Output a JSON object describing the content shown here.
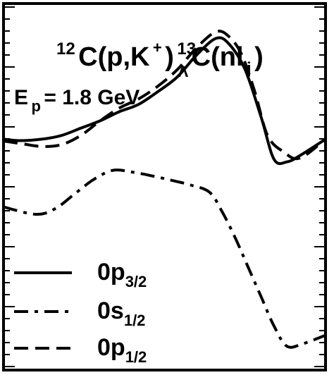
{
  "chart_data": {
    "type": "line",
    "title": {
      "a12": "12",
      "c1": "C(p,K",
      "plus": "+",
      "rp": ")",
      "a13": "13",
      "lambda": "Λ",
      "c2": "C(nl",
      "j": "j",
      "rp2": ")"
    },
    "energy": {
      "e": "E",
      "p": "p",
      "value": " = 1.8 GeV"
    },
    "xlabel": "",
    "ylabel": "",
    "xlim": [
      0,
      100
    ],
    "ylim": [
      0,
      100
    ],
    "grid": false,
    "legend_placement": "bottom-left",
    "series": [
      {
        "name": "0p3/2",
        "legend": {
          "main": "0p",
          "sub": "3/2"
        },
        "dash": "solid",
        "x": [
          0,
          5,
          12,
          18,
          24,
          30,
          36,
          42,
          48,
          54,
          60,
          66,
          70,
          75,
          80,
          84,
          88,
          92,
          100
        ],
        "y": [
          63,
          62.6,
          63,
          64,
          66,
          68,
          70.5,
          72.5,
          76,
          80,
          86,
          90.5,
          89,
          82,
          69,
          57.5,
          56.8,
          58.5,
          63
        ]
      },
      {
        "name": "0s1/2",
        "legend": {
          "main": "0s",
          "sub": "1/2"
        },
        "dash": "dashdot",
        "x": [
          0,
          10,
          16,
          22,
          28,
          34,
          40,
          46,
          52,
          58,
          64,
          68,
          72,
          76,
          80,
          84,
          88,
          93,
          100
        ],
        "y": [
          44.5,
          42.5,
          44,
          48,
          52,
          54.5,
          54,
          53,
          51.8,
          50.5,
          48.5,
          43,
          36,
          28,
          20,
          12,
          6.5,
          7.2,
          9.5
        ]
      },
      {
        "name": "0p1/2",
        "legend": {
          "main": "0p",
          "sub": "1/2"
        },
        "dash": "dashed",
        "x": [
          0,
          6,
          12,
          18,
          24,
          30,
          36,
          42,
          48,
          54,
          60,
          66,
          70,
          74,
          78,
          82,
          87,
          92,
          100
        ],
        "y": [
          62.5,
          61.7,
          61,
          61.5,
          64,
          68,
          71.5,
          74,
          77.5,
          82,
          88,
          92.3,
          91,
          86,
          76,
          64,
          59.5,
          57.8,
          63
        ]
      }
    ]
  }
}
